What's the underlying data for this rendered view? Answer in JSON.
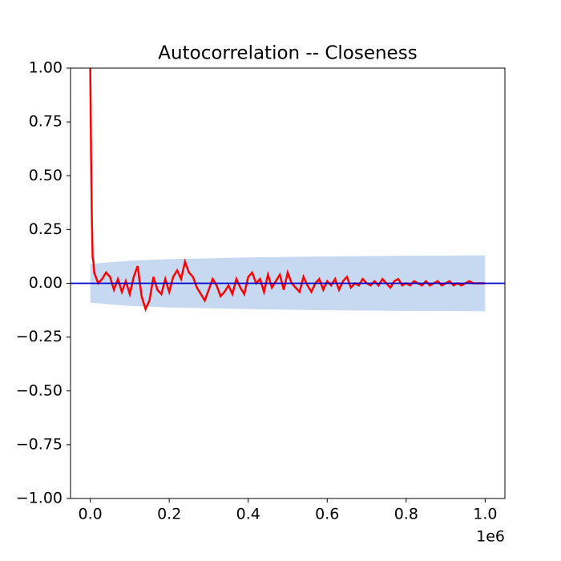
{
  "chart_data": {
    "type": "line",
    "title": "Autocorrelation -- Closeness",
    "x": [
      0,
      2000,
      4000,
      6000,
      8000,
      10000,
      20000,
      30000,
      40000,
      50000,
      60000,
      70000,
      80000,
      90000,
      100000,
      110000,
      120000,
      130000,
      140000,
      150000,
      160000,
      170000,
      180000,
      190000,
      200000,
      210000,
      220000,
      230000,
      240000,
      250000,
      260000,
      270000,
      280000,
      290000,
      300000,
      310000,
      320000,
      330000,
      340000,
      350000,
      360000,
      370000,
      380000,
      390000,
      400000,
      410000,
      420000,
      430000,
      440000,
      450000,
      460000,
      470000,
      480000,
      490000,
      500000,
      510000,
      520000,
      530000,
      540000,
      550000,
      560000,
      570000,
      580000,
      590000,
      600000,
      610000,
      620000,
      630000,
      640000,
      650000,
      660000,
      670000,
      680000,
      690000,
      700000,
      710000,
      720000,
      730000,
      740000,
      750000,
      760000,
      770000,
      780000,
      790000,
      800000,
      810000,
      820000,
      830000,
      840000,
      850000,
      860000,
      870000,
      880000,
      890000,
      900000,
      910000,
      920000,
      930000,
      940000,
      950000,
      960000,
      970000,
      980000,
      990000,
      1000000
    ],
    "series": [
      {
        "color": "#ff0000",
        "values": [
          1.0,
          0.6,
          0.3,
          0.12,
          0.1,
          0.05,
          0.0,
          0.02,
          0.05,
          0.03,
          -0.03,
          0.02,
          -0.04,
          0.01,
          -0.05,
          0.03,
          0.08,
          -0.06,
          -0.12,
          -0.08,
          0.03,
          -0.03,
          -0.05,
          0.02,
          -0.04,
          0.03,
          0.06,
          0.02,
          0.1,
          0.05,
          0.03,
          -0.02,
          -0.05,
          -0.08,
          -0.03,
          0.02,
          -0.01,
          -0.06,
          -0.04,
          -0.01,
          -0.05,
          0.02,
          -0.02,
          -0.05,
          0.03,
          0.05,
          0.0,
          0.02,
          -0.04,
          0.04,
          -0.02,
          0.01,
          0.04,
          -0.03,
          0.05,
          0.0,
          -0.02,
          -0.04,
          0.03,
          -0.01,
          -0.04,
          0.0,
          0.02,
          -0.03,
          0.01,
          -0.01,
          0.02,
          -0.03,
          0.01,
          0.03,
          -0.02,
          0.0,
          -0.01,
          0.02,
          0.0,
          -0.01,
          0.01,
          -0.01,
          0.02,
          0.0,
          -0.02,
          0.01,
          0.02,
          -0.01,
          0.0,
          -0.01,
          0.01,
          0.0,
          -0.01,
          0.01,
          -0.01,
          0.0,
          0.01,
          -0.01,
          0.0,
          0.01,
          -0.01,
          0.0,
          -0.01,
          0.0,
          0.01,
          0.0,
          0.0,
          0.0,
          0.0
        ]
      }
    ],
    "band": {
      "color": "#c6d9f0",
      "x": [
        0,
        100000,
        200000,
        400000,
        600000,
        800000,
        1000000
      ],
      "upper": [
        0.09,
        0.105,
        0.112,
        0.12,
        0.125,
        0.128,
        0.13
      ],
      "lower": [
        -0.09,
        -0.105,
        -0.112,
        -0.12,
        -0.125,
        -0.128,
        -0.13
      ]
    },
    "hline": 0,
    "hline_color": "#0000cc",
    "xlim": [
      -50000,
      1050000
    ],
    "xticks": [
      {
        "value": 0,
        "label": "0.0"
      },
      {
        "value": 200000,
        "label": "0.2"
      },
      {
        "value": 400000,
        "label": "0.4"
      },
      {
        "value": 600000,
        "label": "0.6"
      },
      {
        "value": 800000,
        "label": "0.8"
      },
      {
        "value": 1000000,
        "label": "1.0"
      }
    ],
    "x_offset_label": "1e6",
    "ylim": [
      -1,
      1
    ],
    "yticks": [
      {
        "value": -1,
        "label": "−1.00"
      },
      {
        "value": -0.75,
        "label": "−0.75"
      },
      {
        "value": -0.5,
        "label": "−0.50"
      },
      {
        "value": -0.25,
        "label": "−0.25"
      },
      {
        "value": 0,
        "label": "0.00"
      },
      {
        "value": 0.25,
        "label": "0.25"
      },
      {
        "value": 0.5,
        "label": "0.50"
      },
      {
        "value": 0.75,
        "label": "0.75"
      },
      {
        "value": 1,
        "label": "1.00"
      }
    ]
  }
}
